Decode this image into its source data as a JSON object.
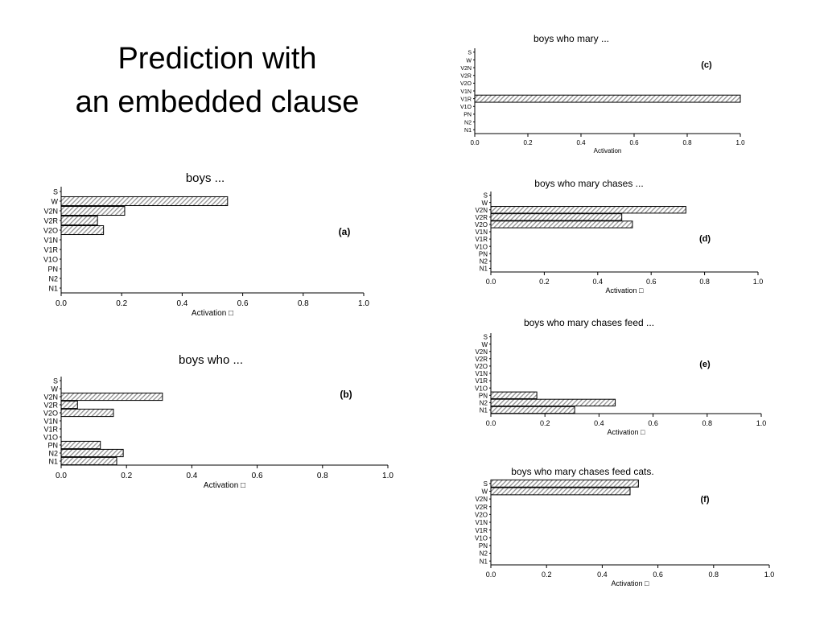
{
  "slide": {
    "title_line1": "Prediction with",
    "title_line2": "an embedded clause"
  },
  "colors": {
    "bar_fill": "#8f8f8f",
    "bar_stroke": "#000000",
    "axis": "#000000"
  },
  "chart_data": [
    {
      "type": "bar",
      "orientation": "horizontal",
      "panel_label": "(a)",
      "title": "boys ...",
      "categories": [
        "S",
        "W",
        "V2N",
        "V2R",
        "V2O",
        "V1N",
        "V1R",
        "V1O",
        "PN",
        "N2",
        "N1"
      ],
      "values": [
        0,
        0.55,
        0.21,
        0.12,
        0.14,
        0,
        0,
        0,
        0,
        0,
        0
      ],
      "xlabel": "Activation □",
      "xticks": [
        "0.0",
        "0.2",
        "0.4",
        "0.6",
        "0.8",
        "1.0"
      ],
      "xlim": [
        0,
        1
      ]
    },
    {
      "type": "bar",
      "orientation": "horizontal",
      "panel_label": "(b)",
      "title": "boys who ...",
      "categories": [
        "S",
        "W",
        "V2N",
        "V2R",
        "V2O",
        "V1N",
        "V1R",
        "V1O",
        "PN",
        "N2",
        "N1"
      ],
      "values": [
        0,
        0,
        0.31,
        0.05,
        0.16,
        0,
        0,
        0,
        0.12,
        0.19,
        0.17
      ],
      "xlabel": "Activation □",
      "xticks": [
        "0.0",
        "0.2",
        "0.4",
        "0.6",
        "0.8",
        "1.0"
      ],
      "xlim": [
        0,
        1
      ]
    },
    {
      "type": "bar",
      "orientation": "horizontal",
      "panel_label": "(c)",
      "title": "boys who mary ...",
      "categories": [
        "S",
        "W",
        "V2N",
        "V2R",
        "V2O",
        "V1N",
        "V1R",
        "V1O",
        "PN",
        "N2",
        "N1"
      ],
      "values": [
        0,
        0,
        0,
        0,
        0,
        0,
        1.0,
        0,
        0,
        0,
        0
      ],
      "xlabel": "Activation",
      "xticks": [
        "0.0",
        "0.2",
        "0.4",
        "0.6",
        "0.8",
        "1.0"
      ],
      "xlim": [
        0,
        1
      ]
    },
    {
      "type": "bar",
      "orientation": "horizontal",
      "panel_label": "(d)",
      "title": "boys who mary chases ...",
      "categories": [
        "S",
        "W",
        "V2N",
        "V2R",
        "V2O",
        "V1N",
        "V1R",
        "V1O",
        "PN",
        "N2",
        "N1"
      ],
      "values": [
        0,
        0,
        0.73,
        0.49,
        0.53,
        0,
        0,
        0,
        0,
        0,
        0
      ],
      "xlabel": "Activation □",
      "xticks": [
        "0.0",
        "0.2",
        "0.4",
        "0.6",
        "0.8",
        "1.0"
      ],
      "xlim": [
        0,
        1
      ]
    },
    {
      "type": "bar",
      "orientation": "horizontal",
      "panel_label": "(e)",
      "title": "boys who mary chases feed ...",
      "categories": [
        "S",
        "W",
        "V2N",
        "V2R",
        "V2O",
        "V1N",
        "V1R",
        "V1O",
        "PN",
        "N2",
        "N1"
      ],
      "values": [
        0,
        0,
        0,
        0,
        0,
        0,
        0,
        0,
        0.17,
        0.46,
        0.31
      ],
      "xlabel": "Activation □",
      "xticks": [
        "0.0",
        "0.2",
        "0.4",
        "0.6",
        "0.8",
        "1.0"
      ],
      "xlim": [
        0,
        1
      ]
    },
    {
      "type": "bar",
      "orientation": "horizontal",
      "panel_label": "(f)",
      "title": "boys who mary chases feed cats.",
      "categories": [
        "S",
        "W",
        "V2N",
        "V2R",
        "V2O",
        "V1N",
        "V1R",
        "V1O",
        "PN",
        "N2",
        "N1"
      ],
      "values": [
        0.53,
        0.5,
        0,
        0,
        0,
        0,
        0,
        0,
        0,
        0,
        0
      ],
      "xlabel": "Activation □",
      "xticks": [
        "0.0",
        "0.2",
        "0.4",
        "0.6",
        "0.8",
        "1.0"
      ],
      "xlim": [
        0,
        1
      ]
    }
  ]
}
